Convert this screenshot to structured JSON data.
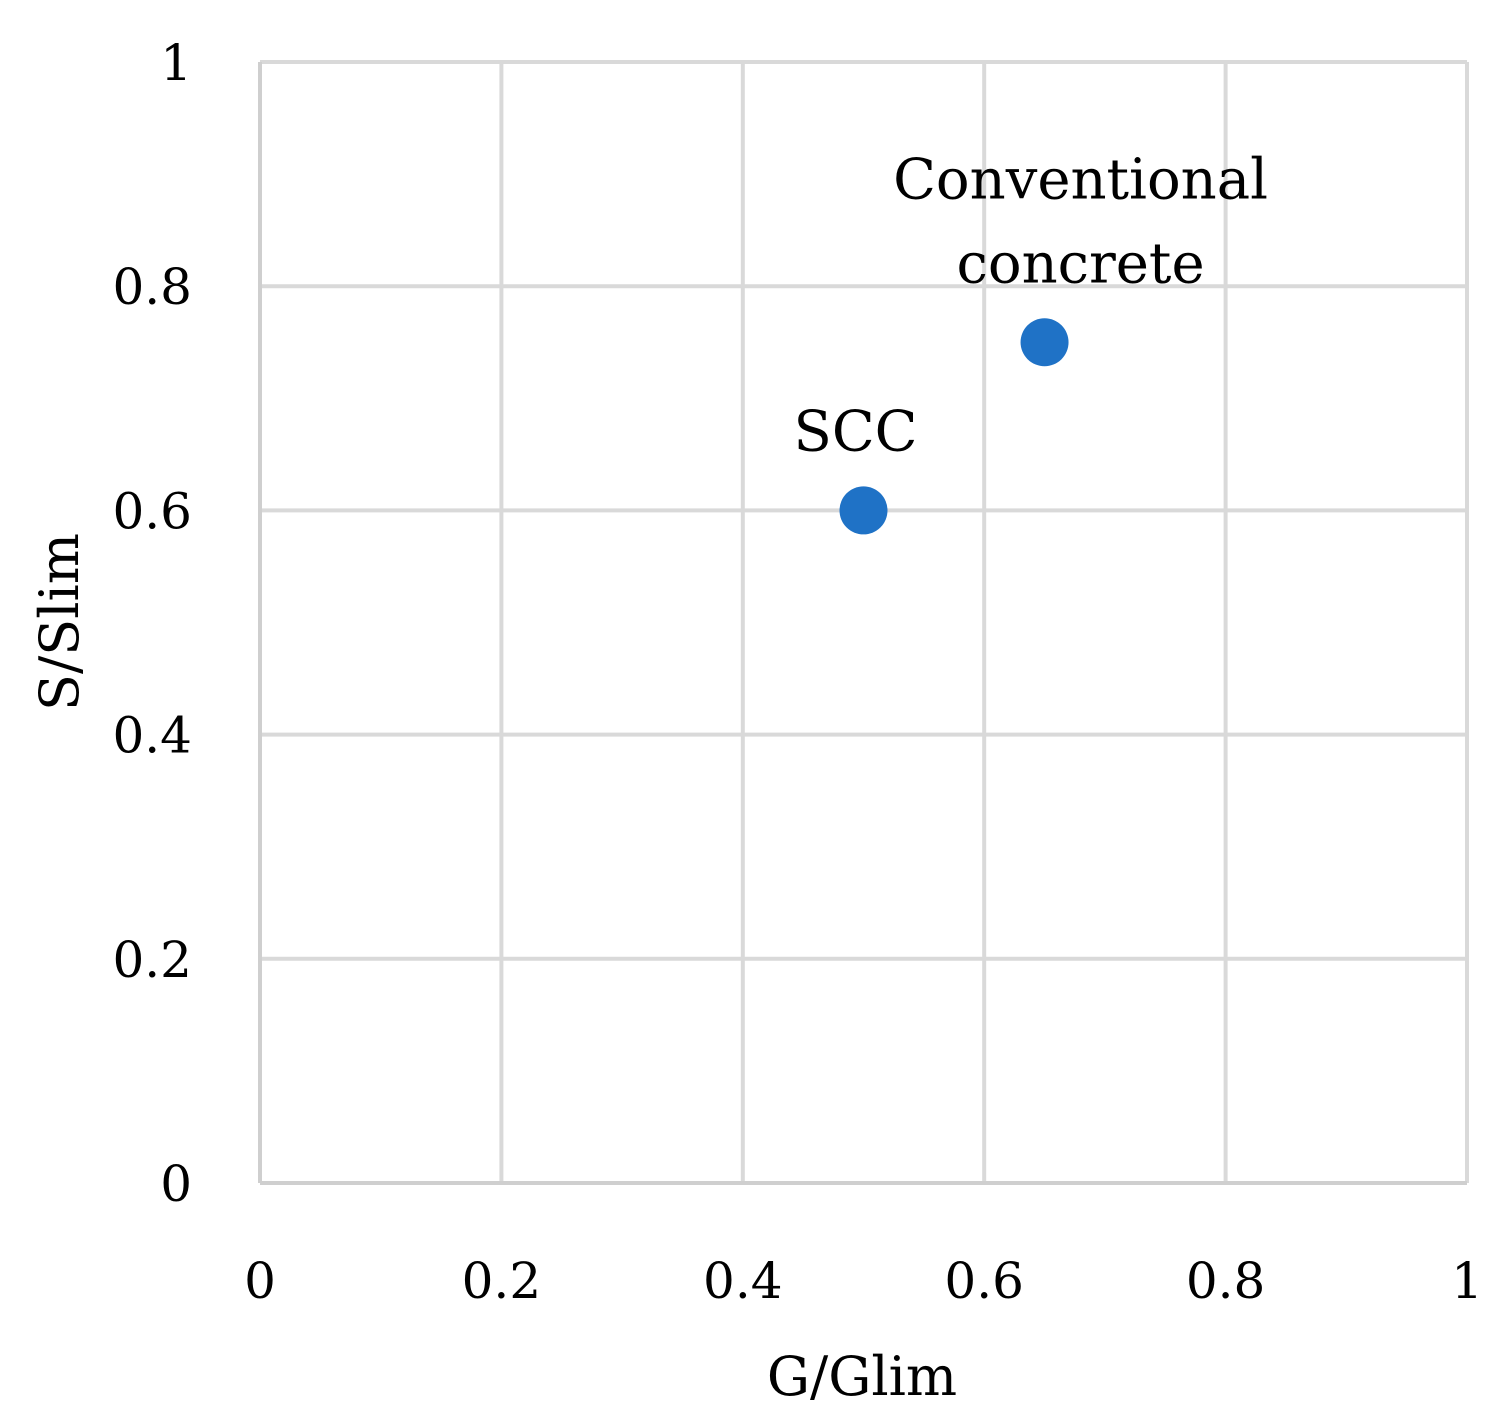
{
  "chart_data": {
    "type": "scatter",
    "title": "",
    "xlabel": "G/Glim",
    "ylabel": "S/Slim",
    "xlim": [
      0,
      1
    ],
    "ylim": [
      0,
      1
    ],
    "x_ticks": [
      "0",
      "0.2",
      "0.4",
      "0.6",
      "0.8",
      "1"
    ],
    "y_ticks": [
      "0",
      "0.2",
      "0.4",
      "0.6",
      "0.8",
      "1"
    ],
    "grid": true,
    "legend": "none",
    "marker_color": "#1f72c6",
    "gridline_color": "#d9d9d9",
    "points": [
      {
        "x": 0.5,
        "y": 0.6,
        "label_lines": [
          "SCC"
        ]
      },
      {
        "x": 0.65,
        "y": 0.75,
        "label_lines": [
          "Conventional",
          "concrete"
        ]
      }
    ]
  }
}
